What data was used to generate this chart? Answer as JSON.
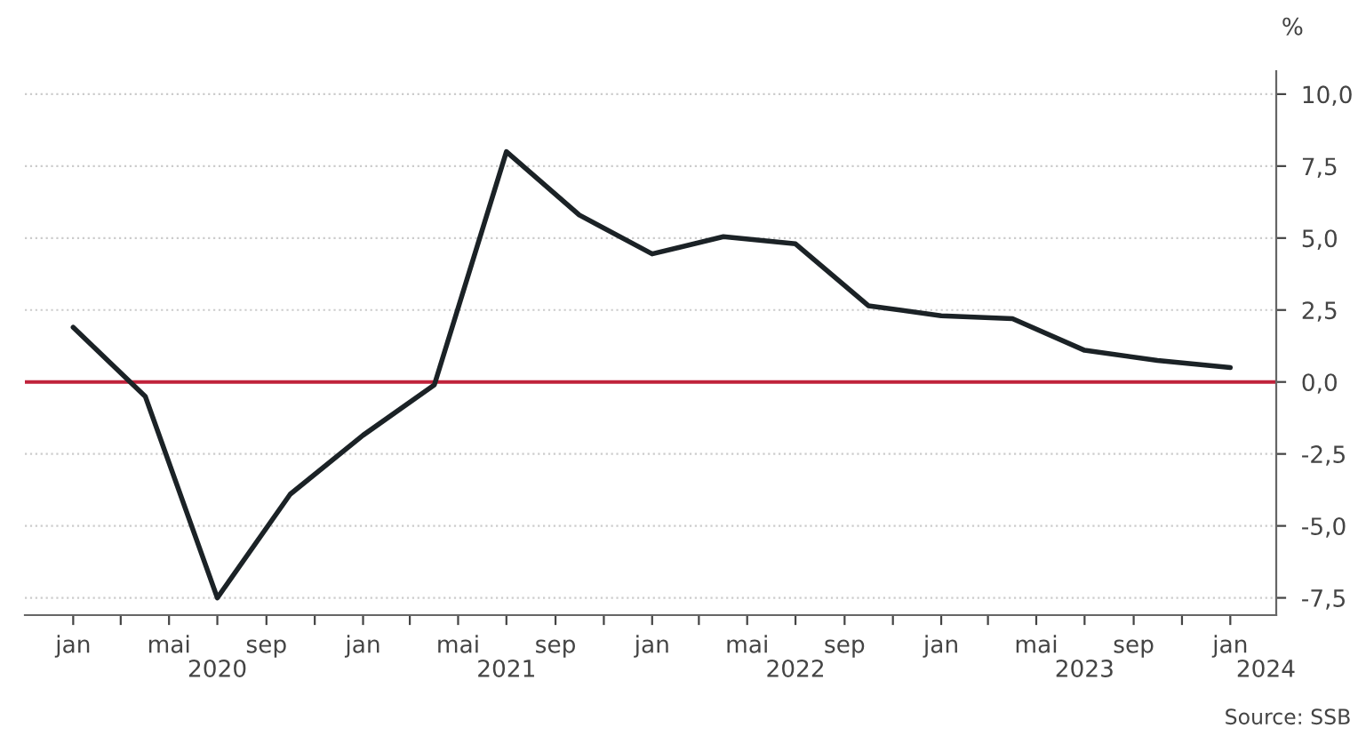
{
  "chart_data": {
    "type": "line",
    "ylabel": "%",
    "x": [
      "2020-01",
      "2020-04",
      "2020-07",
      "2020-10",
      "2021-01",
      "2021-04",
      "2021-07",
      "2021-10",
      "2022-01",
      "2022-04",
      "2022-07",
      "2022-10",
      "2023-01",
      "2023-04",
      "2023-07",
      "2023-10",
      "2024-01"
    ],
    "series": [
      {
        "color": "#1b2226",
        "values": [
          1.9,
          -0.5,
          -7.5,
          -3.9,
          -1.85,
          -0.1,
          8.0,
          5.8,
          4.45,
          5.05,
          4.8,
          2.65,
          2.3,
          2.2,
          1.1,
          0.75,
          0.5
        ]
      }
    ],
    "xlim": [
      "2019-11-01",
      "2024-02-28"
    ],
    "xticks": [
      {
        "value": "2020-01",
        "label": "jan"
      },
      {
        "value": "2020-03",
        "label": null
      },
      {
        "value": "2020-05",
        "label": "mai"
      },
      {
        "value": "2020-07",
        "label": null
      },
      {
        "value": "2020-09",
        "label": "sep"
      },
      {
        "value": "2020-11",
        "label": null
      },
      {
        "value": "2021-01",
        "label": "jan"
      },
      {
        "value": "2021-03",
        "label": null
      },
      {
        "value": "2021-05",
        "label": "mai"
      },
      {
        "value": "2021-07",
        "label": null
      },
      {
        "value": "2021-09",
        "label": "sep"
      },
      {
        "value": "2021-11",
        "label": null
      },
      {
        "value": "2022-01",
        "label": "jan"
      },
      {
        "value": "2022-03",
        "label": null
      },
      {
        "value": "2022-05",
        "label": "mai"
      },
      {
        "value": "2022-07",
        "label": null
      },
      {
        "value": "2022-09",
        "label": "sep"
      },
      {
        "value": "2022-11",
        "label": null
      },
      {
        "value": "2023-01",
        "label": "jan"
      },
      {
        "value": "2023-03",
        "label": null
      },
      {
        "value": "2023-05",
        "label": "mai"
      },
      {
        "value": "2023-07",
        "label": null
      },
      {
        "value": "2023-09",
        "label": "sep"
      },
      {
        "value": "2023-11",
        "label": null
      },
      {
        "value": "2024-01",
        "label": "jan"
      }
    ],
    "x2lim": [
      "2019-11-01",
      "2024-02-28"
    ],
    "x2ticks": [
      {
        "value": "2020-07",
        "label": "2020"
      },
      {
        "value": "2021-07",
        "label": "2021"
      },
      {
        "value": "2022-07",
        "label": "2022"
      },
      {
        "value": "2023-07",
        "label": "2023"
      },
      {
        "value": "2024-02-15",
        "label": "2024"
      }
    ],
    "ylim": [
      -8.1,
      10.8
    ],
    "yticks": [
      {
        "value": -7.5,
        "label": "-7,5"
      },
      {
        "value": -5,
        "label": "-5,0"
      },
      {
        "value": -2.5,
        "label": "-2,5"
      },
      {
        "value": 0,
        "label": "0,0"
      },
      {
        "value": 2.5,
        "label": "2,5"
      },
      {
        "value": 5,
        "label": "5,0"
      },
      {
        "value": 7.5,
        "label": "7,5"
      },
      {
        "value": 10,
        "label": "10,0"
      }
    ],
    "grid": "y",
    "line_style": "solid",
    "marker": "none",
    "legend": false,
    "ref_lines": [
      {
        "axis": "y",
        "value": 0,
        "color": "#c0223b",
        "line_style": "solid"
      }
    ],
    "annotations": [
      "Source: SSB"
    ]
  }
}
